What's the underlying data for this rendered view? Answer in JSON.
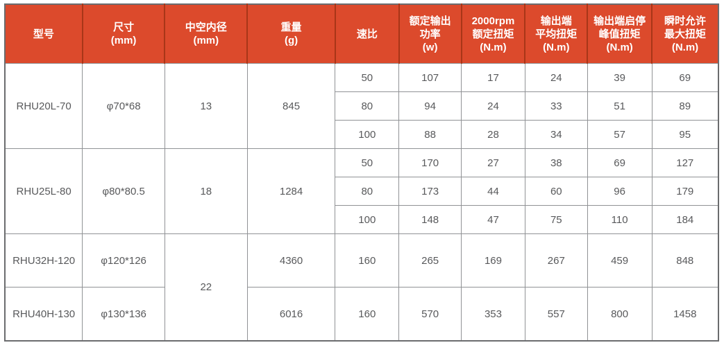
{
  "colors": {
    "header_bg": "#dc4a2c",
    "header_separator": "#a83618",
    "header_text": "#ffffff",
    "body_text": "#58595b",
    "grid_line": "#909295",
    "outer_border": "#6b6c6e"
  },
  "table": {
    "columns": [
      {
        "id": "model",
        "lines": [
          "型号"
        ]
      },
      {
        "id": "dimensions",
        "lines": [
          "尺寸",
          "(mm)"
        ]
      },
      {
        "id": "hollow-bore",
        "lines": [
          "中空内径",
          "(mm)"
        ]
      },
      {
        "id": "weight",
        "lines": [
          "重量",
          "(g)"
        ]
      },
      {
        "id": "ratio",
        "lines": [
          "速比"
        ]
      },
      {
        "id": "rated-output-power",
        "lines": [
          "额定输出",
          "功率",
          "(w)"
        ]
      },
      {
        "id": "rated-torque-2000rpm",
        "lines": [
          "2000rpm",
          "额定扭矩",
          "(N.m)"
        ]
      },
      {
        "id": "output-avg-torque",
        "lines": [
          "输出端",
          "平均扭矩",
          "(N.m)"
        ]
      },
      {
        "id": "start-stop-peak-torque",
        "lines": [
          "输出端启停",
          "峰值扭矩",
          "(N.m)"
        ]
      },
      {
        "id": "instant-max-torque",
        "lines": [
          "瞬时允许",
          "最大扭矩",
          "(N.m)"
        ]
      }
    ],
    "rows": [
      [
        {
          "v": "RHU20L-70",
          "rowspan": 3,
          "name": "model-cell"
        },
        {
          "v": "φ70*68",
          "rowspan": 3,
          "name": "dimensions-cell"
        },
        {
          "v": "13",
          "rowspan": 3,
          "name": "hollow-bore-cell"
        },
        {
          "v": "845",
          "rowspan": 3,
          "name": "weight-cell"
        },
        {
          "v": "50",
          "name": "ratio-cell"
        },
        {
          "v": "107"
        },
        {
          "v": "17"
        },
        {
          "v": "24"
        },
        {
          "v": "39"
        },
        {
          "v": "69"
        }
      ],
      [
        {
          "v": "80",
          "name": "ratio-cell"
        },
        {
          "v": "94"
        },
        {
          "v": "24"
        },
        {
          "v": "33"
        },
        {
          "v": "51"
        },
        {
          "v": "89"
        }
      ],
      [
        {
          "v": "100",
          "name": "ratio-cell"
        },
        {
          "v": "88"
        },
        {
          "v": "28"
        },
        {
          "v": "34"
        },
        {
          "v": "57"
        },
        {
          "v": "95"
        }
      ],
      [
        {
          "v": "RHU25L-80",
          "rowspan": 3,
          "name": "model-cell"
        },
        {
          "v": "φ80*80.5",
          "rowspan": 3,
          "name": "dimensions-cell"
        },
        {
          "v": "18",
          "rowspan": 3,
          "name": "hollow-bore-cell"
        },
        {
          "v": "1284",
          "rowspan": 3,
          "name": "weight-cell"
        },
        {
          "v": "50",
          "name": "ratio-cell"
        },
        {
          "v": "170"
        },
        {
          "v": "27"
        },
        {
          "v": "38"
        },
        {
          "v": "69"
        },
        {
          "v": "127"
        }
      ],
      [
        {
          "v": "80",
          "name": "ratio-cell"
        },
        {
          "v": "173"
        },
        {
          "v": "44"
        },
        {
          "v": "60"
        },
        {
          "v": "96"
        },
        {
          "v": "179"
        }
      ],
      [
        {
          "v": "100",
          "name": "ratio-cell"
        },
        {
          "v": "148"
        },
        {
          "v": "47"
        },
        {
          "v": "75"
        },
        {
          "v": "110"
        },
        {
          "v": "184"
        }
      ],
      [
        {
          "v": "RHU32H-120",
          "name": "model-cell"
        },
        {
          "v": "φ120*126",
          "name": "dimensions-cell"
        },
        {
          "v": "22",
          "rowspan": 2,
          "name": "hollow-bore-cell"
        },
        {
          "v": "4360",
          "name": "weight-cell"
        },
        {
          "v": "160",
          "name": "ratio-cell"
        },
        {
          "v": "265"
        },
        {
          "v": "169"
        },
        {
          "v": "267"
        },
        {
          "v": "459"
        },
        {
          "v": "848"
        }
      ],
      [
        {
          "v": "RHU40H-130",
          "name": "model-cell"
        },
        {
          "v": "φ130*136",
          "name": "dimensions-cell"
        },
        {
          "v": "6016",
          "name": "weight-cell"
        },
        {
          "v": "160",
          "name": "ratio-cell"
        },
        {
          "v": "570"
        },
        {
          "v": "353"
        },
        {
          "v": "557"
        },
        {
          "v": "800"
        },
        {
          "v": "1458"
        }
      ]
    ]
  }
}
